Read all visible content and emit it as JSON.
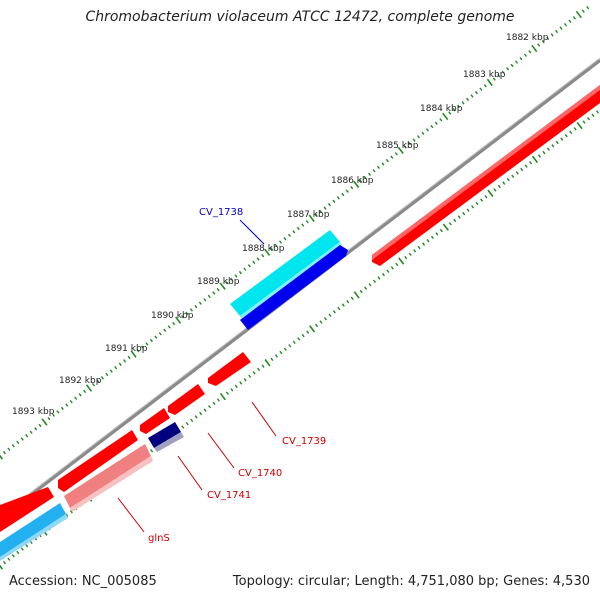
{
  "title": "Chromobacterium violaceum ATCC 12472, complete genome",
  "accession": "Accession: NC_005085",
  "topology": "Topology: circular; Length: 4,751,080 bp; Genes: 4,530",
  "scale_labels": [
    "1882 kbp",
    "1883 kbp",
    "1884 kbp",
    "1885 kbp",
    "1886 kbp",
    "1887 kbp",
    "1888 kbp",
    "1889 kbp",
    "1890 kbp",
    "1891 kbp",
    "1892 kbp",
    "1893 kbp"
  ],
  "gene_labels": [
    {
      "name": "CV_1738",
      "color": "#0000cc"
    },
    {
      "name": "CV_1739",
      "color": "#cc0000"
    },
    {
      "name": "CV_1740",
      "color": "#cc0000"
    },
    {
      "name": "CV_1741",
      "color": "#cc0000"
    },
    {
      "name": "glnS",
      "color": "#cc0000"
    }
  ],
  "colors": {
    "backbone": "#8a8a8a",
    "forward_gene": "#ff0000",
    "reverse_gene": "#0000ee",
    "highlight_cyan": "#00e5ee",
    "light_blue": "#22b0f0",
    "pink": "#f08080",
    "navy": "#000080",
    "tick": "#228822"
  }
}
